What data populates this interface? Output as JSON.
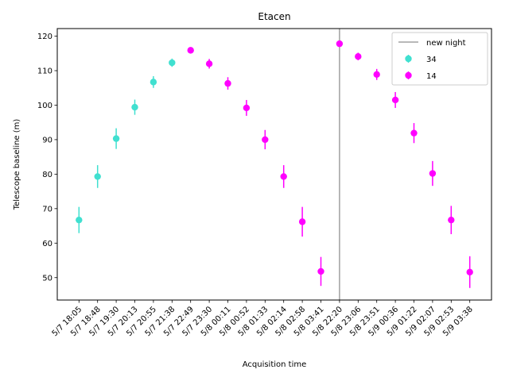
{
  "chart_data": {
    "type": "scatter",
    "title": "Etacen",
    "xlabel": "Acquisition time",
    "ylabel": "Telescope baseline (m)",
    "ylim": [
      43.5,
      122.2
    ],
    "yticks": [
      50,
      60,
      70,
      80,
      90,
      100,
      110,
      120
    ],
    "categories": [
      "5/7 18:05",
      "5/7 18:48",
      "5/7 19:30",
      "5/7 20:13",
      "5/7 20:55",
      "5/7 21:38",
      "5/7 22:49",
      "5/7 23:30",
      "5/8 00:11",
      "5/8 00:52",
      "5/8 01:33",
      "5/8 02:14",
      "5/8 02:58",
      "5/8 03:41",
      "5/8 22:20",
      "5/8 23:06",
      "5/8 23:51",
      "5/9 00:36",
      "5/9 01:22",
      "5/9 02:07",
      "5/9 02:53",
      "5/9 03:38"
    ],
    "night_separator": {
      "category_index": 14,
      "label": "new night",
      "color": "#a0a0a0"
    },
    "legend": {
      "position": "top-right"
    },
    "series": [
      {
        "name": "34",
        "color": "#40e0d0",
        "points": [
          {
            "i": 0,
            "y": 66.7,
            "err": 3.8
          },
          {
            "i": 1,
            "y": 79.3,
            "err": 3.3
          },
          {
            "i": 2,
            "y": 90.3,
            "err": 3.0
          },
          {
            "i": 3,
            "y": 99.4,
            "err": 2.2
          },
          {
            "i": 4,
            "y": 106.7,
            "err": 1.7
          },
          {
            "i": 5,
            "y": 112.3,
            "err": 1.2
          }
        ]
      },
      {
        "name": "14",
        "color": "#ff00ff",
        "points": [
          {
            "i": 6,
            "y": 115.9,
            "err": 0.6
          },
          {
            "i": 7,
            "y": 112.0,
            "err": 1.4
          },
          {
            "i": 8,
            "y": 106.3,
            "err": 1.8
          },
          {
            "i": 9,
            "y": 99.2,
            "err": 2.3
          },
          {
            "i": 10,
            "y": 90.0,
            "err": 2.8
          },
          {
            "i": 11,
            "y": 79.3,
            "err": 3.3
          },
          {
            "i": 12,
            "y": 66.2,
            "err": 4.3
          },
          {
            "i": 13,
            "y": 51.8,
            "err": 4.2
          },
          {
            "i": 14,
            "y": 117.8,
            "err": 0.6
          },
          {
            "i": 15,
            "y": 114.1,
            "err": 1.1
          },
          {
            "i": 16,
            "y": 108.9,
            "err": 1.6
          },
          {
            "i": 17,
            "y": 101.5,
            "err": 2.3
          },
          {
            "i": 18,
            "y": 91.9,
            "err": 2.9
          },
          {
            "i": 19,
            "y": 80.2,
            "err": 3.6
          },
          {
            "i": 20,
            "y": 66.7,
            "err": 4.1
          },
          {
            "i": 21,
            "y": 51.6,
            "err": 4.6
          }
        ]
      }
    ]
  }
}
